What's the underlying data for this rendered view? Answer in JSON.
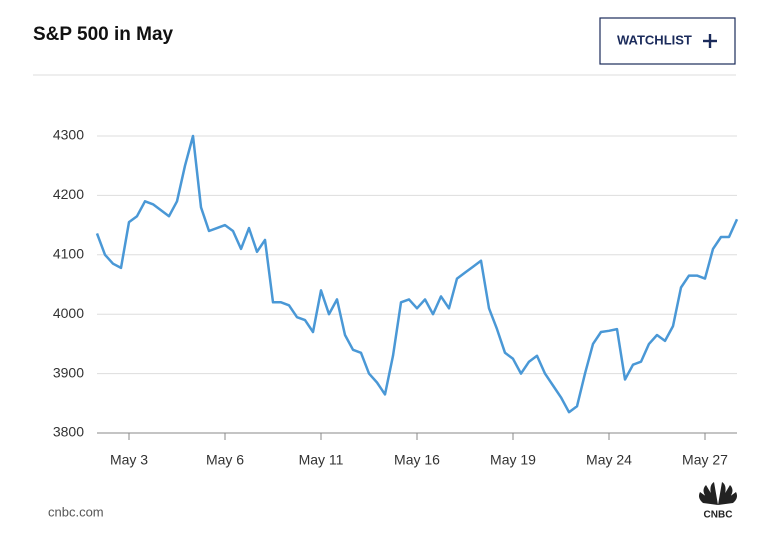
{
  "chart_data": {
    "type": "line",
    "title": "S&P 500 in May",
    "categories": [
      null,
      null,
      null,
      null,
      "May 3",
      null,
      null,
      null,
      null,
      null,
      null,
      null,
      null,
      null,
      null,
      null,
      "May 6",
      null,
      null,
      null,
      null,
      null,
      null,
      null,
      null,
      null,
      null,
      null,
      "May 11",
      null,
      null,
      null,
      null,
      null,
      null,
      null,
      null,
      null,
      null,
      null,
      "May 16",
      null,
      null,
      null,
      null,
      null,
      null,
      null,
      null,
      null,
      null,
      null,
      "May 19",
      null,
      null,
      null,
      null,
      null,
      null,
      null,
      null,
      null,
      null,
      null,
      "May 24",
      null,
      null,
      null,
      null,
      null,
      null,
      null,
      null,
      null,
      null,
      null,
      "May 27",
      null,
      null,
      null,
      null
    ],
    "series": [
      {
        "name": "S&P 500",
        "color": "#4a98d6",
        "values": [
          4136,
          4100,
          4085,
          4078,
          4155,
          4165,
          4190,
          4185,
          4175,
          4165,
          4190,
          4250,
          4300,
          4180,
          4140,
          4145,
          4150,
          4140,
          4110,
          4145,
          4105,
          4125,
          4020,
          4020,
          4015,
          3995,
          3990,
          3970,
          4040,
          4000,
          4025,
          3965,
          3940,
          3935,
          3900,
          3885,
          3865,
          3930,
          4020,
          4025,
          4010,
          4025,
          4000,
          4030,
          4010,
          4060,
          4070,
          4080,
          4090,
          4010,
          3975,
          3935,
          3925,
          3900,
          3920,
          3930,
          3900,
          3880,
          3860,
          3835,
          3845,
          3900,
          3950,
          3970,
          3972,
          3975,
          3890,
          3915,
          3920,
          3950,
          3965,
          3955,
          3980,
          4045,
          4065,
          4065,
          4060,
          4110,
          4130,
          4130,
          4160
        ]
      }
    ],
    "ylim": [
      3800,
      4350
    ],
    "yticks": [
      3800,
      3900,
      4000,
      4100,
      4200,
      4300
    ],
    "grid": true
  },
  "watchlist_button": "WATCHLIST",
  "source": "cnbc.com",
  "logo": "CNBC"
}
